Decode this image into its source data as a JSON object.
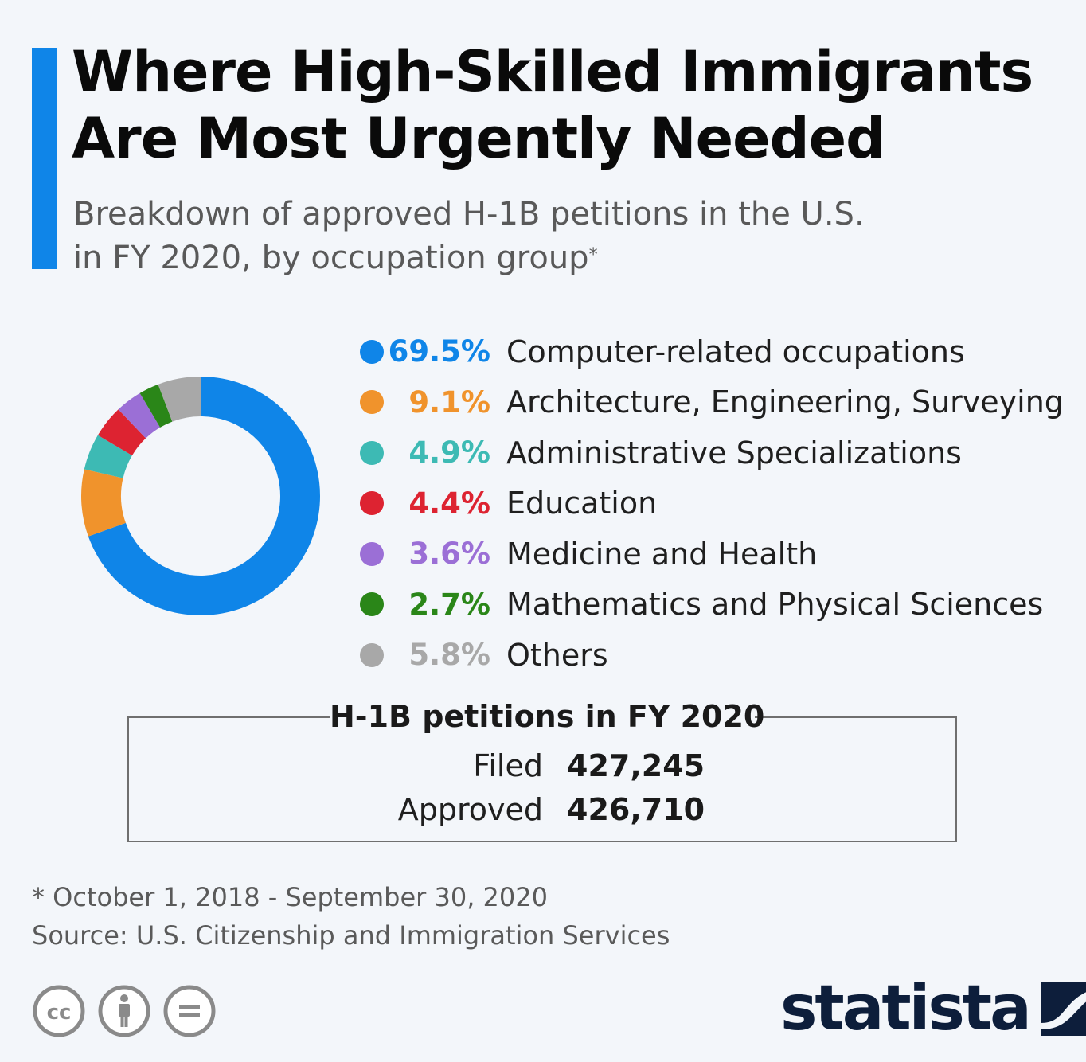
{
  "header": {
    "title_line1": "Where High-Skilled Immigrants",
    "title_line2": "Are Most Urgently Needed",
    "subtitle_line1": "Breakdown of approved H-1B petitions in the U.S.",
    "subtitle_line2": "in FY 2020, by occupation group",
    "subtitle_marker": "*"
  },
  "colors": {
    "accent": "#0f85e8",
    "brand": "#0d1e3b"
  },
  "chart_data": {
    "type": "pie",
    "donut": true,
    "title": "Breakdown of approved H-1B petitions in the U.S. in FY 2020, by occupation group",
    "series": [
      {
        "name": "Computer-related occupations",
        "value": 69.5,
        "label": "69.5%",
        "color": "#0f85e8"
      },
      {
        "name": "Architecture, Engineering, Surveying",
        "value": 9.1,
        "label": "9.1%",
        "color": "#f0932c"
      },
      {
        "name": "Administrative Specializations",
        "value": 4.9,
        "label": "4.9%",
        "color": "#3dbab4"
      },
      {
        "name": "Education",
        "value": 4.4,
        "label": "4.4%",
        "color": "#dd2331"
      },
      {
        "name": "Medicine and Health",
        "value": 3.6,
        "label": "3.6%",
        "color": "#9b6fd6"
      },
      {
        "name": "Mathematics and Physical Sciences",
        "value": 2.7,
        "label": "2.7%",
        "color": "#2a8618"
      },
      {
        "name": "Others",
        "value": 5.8,
        "label": "5.8%",
        "color": "#a8a8a8"
      }
    ],
    "legend_position": "right"
  },
  "petitions": {
    "title": "H-1B petitions in FY 2020",
    "filed_label": "Filed",
    "filed_value": "427,245",
    "approved_label": "Approved",
    "approved_value": "426,710"
  },
  "footer": {
    "footnote": "* October 1, 2018 - September 30, 2020",
    "source": "Source: U.S. Citizenship and Immigration Services",
    "license_icons": [
      "cc-icon",
      "attribution-icon",
      "no-derivatives-icon"
    ],
    "brand_name": "statista"
  }
}
